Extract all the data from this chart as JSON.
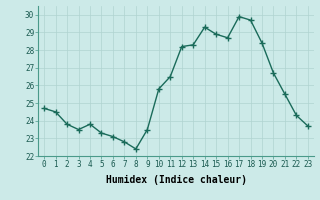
{
  "x": [
    0,
    1,
    2,
    3,
    4,
    5,
    6,
    7,
    8,
    9,
    10,
    11,
    12,
    13,
    14,
    15,
    16,
    17,
    18,
    19,
    20,
    21,
    22,
    23
  ],
  "y": [
    24.7,
    24.5,
    23.8,
    23.5,
    23.8,
    23.3,
    23.1,
    22.8,
    22.4,
    23.5,
    25.8,
    26.5,
    28.2,
    28.3,
    29.3,
    28.9,
    28.7,
    29.9,
    29.7,
    28.4,
    26.7,
    25.5,
    24.3,
    23.7
  ],
  "line_color": "#1a6b5a",
  "marker": "+",
  "marker_size": 4,
  "bg_color": "#cceae8",
  "grid_color": "#b0d4d0",
  "xlabel": "Humidex (Indice chaleur)",
  "ylim": [
    22,
    30.5
  ],
  "xlim": [
    -0.5,
    23.5
  ],
  "yticks": [
    22,
    23,
    24,
    25,
    26,
    27,
    28,
    29,
    30
  ],
  "xticks": [
    0,
    1,
    2,
    3,
    4,
    5,
    6,
    7,
    8,
    9,
    10,
    11,
    12,
    13,
    14,
    15,
    16,
    17,
    18,
    19,
    20,
    21,
    22,
    23
  ],
  "tick_fontsize": 5.5,
  "label_fontsize": 7.0,
  "linewidth": 1.0
}
